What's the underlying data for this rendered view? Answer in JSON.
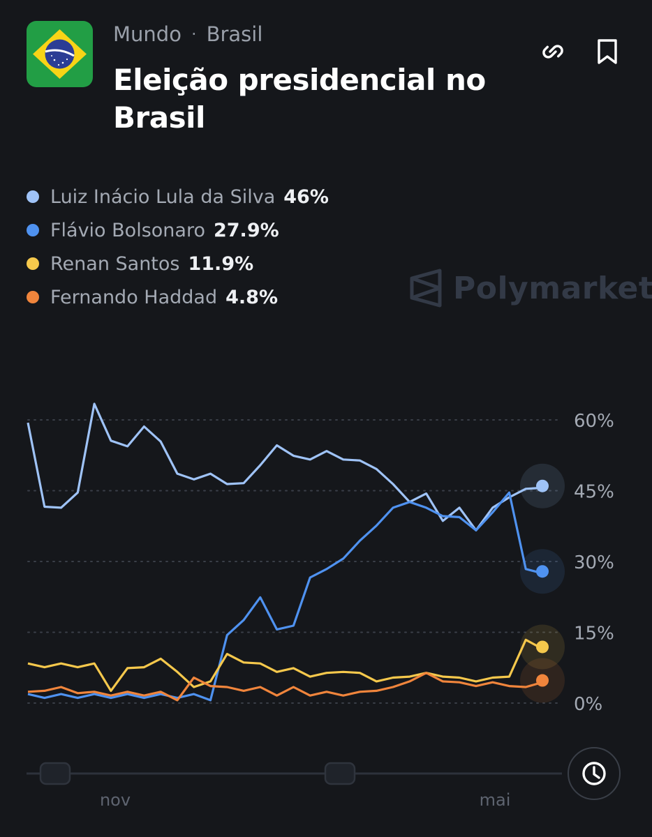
{
  "header": {
    "category": "Mundo",
    "separator": "·",
    "subcategory": "Brasil",
    "title": "Eleição presidencial no Brasil",
    "flag_icon": "brazil-flag-icon",
    "link_icon": "link-icon",
    "bookmark_icon": "bookmark-icon"
  },
  "watermark": "Polymarket",
  "clock_icon": "clock-icon",
  "chart_data": {
    "type": "line",
    "x_tick_labels": [
      "nov",
      "mai"
    ],
    "y_ticks": [
      60,
      45,
      30,
      15,
      0
    ],
    "y_tick_labels": [
      "60%",
      "45%",
      "30%",
      "15%",
      "0%"
    ],
    "ylim": [
      0,
      60
    ],
    "grid": "horizontal dotted",
    "legend_position": "top-left",
    "series": [
      {
        "name": "Luiz Inácio Lula da Silva",
        "current": "46%",
        "color": "#9fc3f7",
        "values": [
          59,
          42,
          41,
          45,
          63,
          56,
          54,
          59,
          55,
          49,
          47,
          49,
          46,
          47,
          50,
          55,
          52,
          52,
          53,
          52,
          51,
          50,
          46,
          43,
          44,
          39,
          41,
          37,
          41,
          44,
          45,
          46
        ]
      },
      {
        "name": "Flávio Bolsonaro",
        "current": "27.9%",
        "color": "#4f92f0",
        "values": [
          1.5,
          1.5,
          1.5,
          1.5,
          1.5,
          1.5,
          1.5,
          1.5,
          1.5,
          1.5,
          1.5,
          1,
          14,
          18,
          22,
          16,
          16,
          27,
          28,
          31,
          34,
          38,
          41,
          43,
          41,
          40,
          39,
          37,
          40,
          45,
          28,
          27.9
        ]
      },
      {
        "name": "Renan Santos",
        "current": "11.9%",
        "color": "#f5c84c",
        "values": [
          8,
          8,
          8,
          8,
          8,
          3,
          7,
          8,
          9,
          7,
          3,
          5,
          10,
          9,
          8,
          7,
          7,
          6,
          6,
          7,
          6,
          5,
          5,
          6,
          6,
          6,
          5,
          5,
          5,
          6,
          13,
          11.9
        ]
      },
      {
        "name": "Fernando Haddad",
        "current": "4.8%",
        "color": "#f0853c",
        "values": [
          2,
          3,
          3,
          2.5,
          2,
          2,
          2,
          2,
          2,
          1,
          5,
          4,
          3,
          3,
          3,
          2,
          3,
          2,
          2,
          2,
          2,
          3,
          3,
          5,
          6,
          5,
          4,
          4,
          4,
          4,
          3,
          4.8
        ]
      }
    ]
  }
}
